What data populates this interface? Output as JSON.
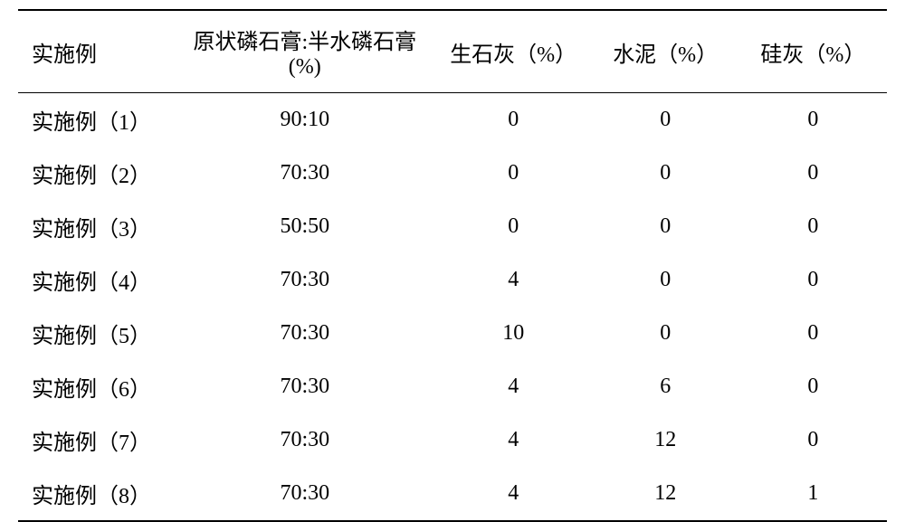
{
  "table": {
    "type": "table",
    "columns": [
      "实施例",
      "原状磷石膏:半水磷石膏(%)",
      "生石灰（%）",
      "水泥（%）",
      "硅灰（%）"
    ],
    "rows": [
      [
        "实施例（1）",
        "90:10",
        "0",
        "0",
        "0"
      ],
      [
        "实施例（2）",
        "70:30",
        "0",
        "0",
        "0"
      ],
      [
        "实施例（3）",
        "50:50",
        "0",
        "0",
        "0"
      ],
      [
        "实施例（4）",
        "70:30",
        "4",
        "0",
        "0"
      ],
      [
        "实施例（5）",
        "70:30",
        "10",
        "0",
        "0"
      ],
      [
        "实施例（6）",
        "70:30",
        "4",
        "6",
        "0"
      ],
      [
        "实施例（7）",
        "70:30",
        "4",
        "12",
        "0"
      ],
      [
        "实施例（8）",
        "70:30",
        "4",
        "12",
        "1"
      ]
    ],
    "column_widths": [
      "18%",
      "30%",
      "18%",
      "17%",
      "17%"
    ],
    "column_alignments": [
      "left",
      "center",
      "center",
      "center",
      "center"
    ],
    "header_fontsize": 24,
    "cell_fontsize": 24,
    "border_color": "#000000",
    "background_color": "#ffffff",
    "text_color": "#000000",
    "font_family": "SimSun"
  }
}
